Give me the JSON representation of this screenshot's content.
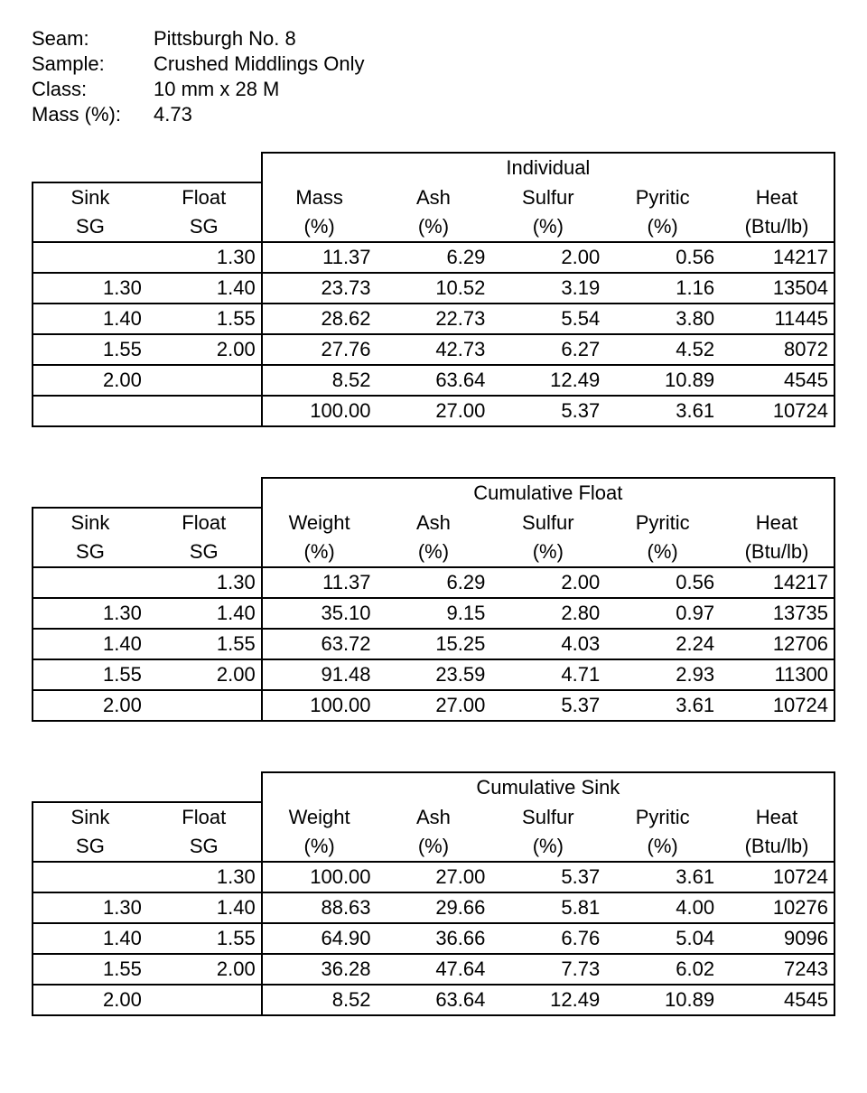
{
  "meta": {
    "seam_label": "Seam:",
    "seam_value": "Pittsburgh No. 8",
    "sample_label": "Sample:",
    "sample_value": "Crushed Middlings Only",
    "class_label": "Class:",
    "class_value": "10 mm x 28 M",
    "mass_label": "Mass (%):",
    "mass_value": "4.73"
  },
  "headers": {
    "sink": "Sink",
    "sg": "SG",
    "float": "Float",
    "mass": "Mass",
    "weight": "Weight",
    "pct": "(%)",
    "ash": "Ash",
    "sulfur": "Sulfur",
    "pyritic": "Pyritic",
    "heat": "Heat",
    "btu": "(Btu/lb)"
  },
  "titles": {
    "individual": "Individual",
    "cum_float": "Cumulative Float",
    "cum_sink": "Cumulative Sink"
  },
  "t1": {
    "r0": [
      "",
      "1.30",
      "11.37",
      "6.29",
      "2.00",
      "0.56",
      "14217"
    ],
    "r1": [
      "1.30",
      "1.40",
      "23.73",
      "10.52",
      "3.19",
      "1.16",
      "13504"
    ],
    "r2": [
      "1.40",
      "1.55",
      "28.62",
      "22.73",
      "5.54",
      "3.80",
      "11445"
    ],
    "r3": [
      "1.55",
      "2.00",
      "27.76",
      "42.73",
      "6.27",
      "4.52",
      "8072"
    ],
    "r4": [
      "2.00",
      "",
      "8.52",
      "63.64",
      "12.49",
      "10.89",
      "4545"
    ],
    "r5": [
      "",
      "",
      "100.00",
      "27.00",
      "5.37",
      "3.61",
      "10724"
    ]
  },
  "t2": {
    "r0": [
      "",
      "1.30",
      "11.37",
      "6.29",
      "2.00",
      "0.56",
      "14217"
    ],
    "r1": [
      "1.30",
      "1.40",
      "35.10",
      "9.15",
      "2.80",
      "0.97",
      "13735"
    ],
    "r2": [
      "1.40",
      "1.55",
      "63.72",
      "15.25",
      "4.03",
      "2.24",
      "12706"
    ],
    "r3": [
      "1.55",
      "2.00",
      "91.48",
      "23.59",
      "4.71",
      "2.93",
      "11300"
    ],
    "r4": [
      "2.00",
      "",
      "100.00",
      "27.00",
      "5.37",
      "3.61",
      "10724"
    ]
  },
  "t3": {
    "r0": [
      "",
      "1.30",
      "100.00",
      "27.00",
      "5.37",
      "3.61",
      "10724"
    ],
    "r1": [
      "1.30",
      "1.40",
      "88.63",
      "29.66",
      "5.81",
      "4.00",
      "10276"
    ],
    "r2": [
      "1.40",
      "1.55",
      "64.90",
      "36.66",
      "6.76",
      "5.04",
      "9096"
    ],
    "r3": [
      "1.55",
      "2.00",
      "36.28",
      "47.64",
      "7.73",
      "6.02",
      "7243"
    ],
    "r4": [
      "2.00",
      "",
      "8.52",
      "63.64",
      "12.49",
      "10.89",
      "4545"
    ]
  }
}
